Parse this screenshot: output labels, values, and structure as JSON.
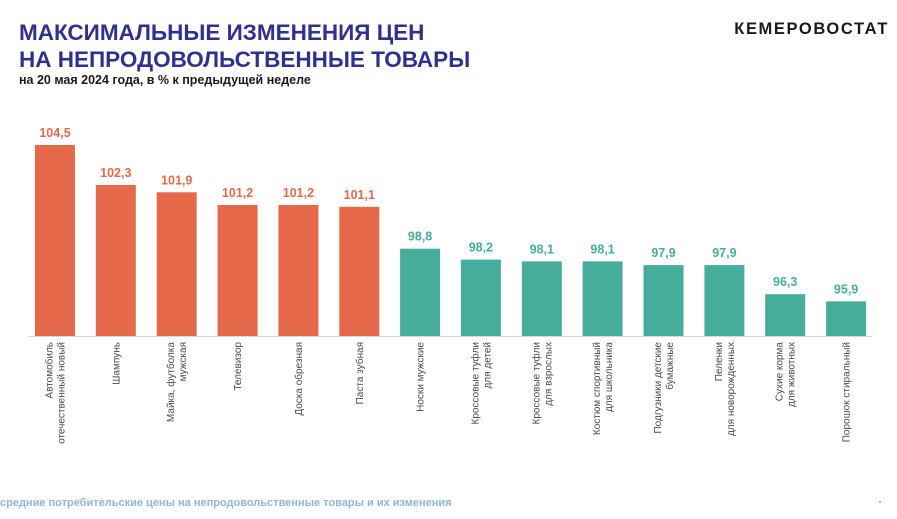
{
  "header": {
    "title_line1": "МАКСИМАЛЬНЫЕ ИЗМЕНЕНИЯ ЦЕН",
    "title_line2": "НА НЕПРОДОВОЛЬСТВЕННЫЕ ТОВАРЫ",
    "subtitle": "на 20 мая 2024 года, в % к предыдущей неделе",
    "brand": "КЕМЕРОВОСТАТ"
  },
  "footer": {
    "text": "средние потребительские цены на непродовольственные товары и их изменения"
  },
  "colors": {
    "increase": "#e5694a",
    "decrease": "#46ad9a",
    "title": "#2e3192"
  },
  "chart_data": {
    "type": "bar",
    "title": "",
    "xlabel": "",
    "ylabel": "",
    "grid": false,
    "ylim": [
      94,
      105
    ],
    "categories": [
      [
        "Автомобиль",
        "отечественный новый"
      ],
      [
        "Шампунь"
      ],
      [
        "Майка, футболка",
        "мужская"
      ],
      [
        "Телевизор"
      ],
      [
        "Доска обрезная"
      ],
      [
        "Паста зубная"
      ],
      [
        "Носки мужские"
      ],
      [
        "Кроссовые туфли",
        "для детей"
      ],
      [
        "Кроссовые туфли",
        "для взрослых"
      ],
      [
        "Костюм спортивный",
        "для школьника"
      ],
      [
        "Подгузники детские",
        "бумажные"
      ],
      [
        "Пеленки",
        "для новорожденных"
      ],
      [
        "Сухие корма",
        "для животных"
      ],
      [
        "Порошок стиральный"
      ]
    ],
    "values": [
      104.5,
      102.3,
      101.9,
      101.2,
      101.2,
      101.1,
      98.8,
      98.2,
      98.1,
      98.1,
      97.9,
      97.9,
      96.3,
      95.9
    ],
    "value_labels": [
      "104,5",
      "102,3",
      "101,9",
      "101,2",
      "101,2",
      "101,1",
      "98,8",
      "98,2",
      "98,1",
      "98,1",
      "97,9",
      "97,9",
      "96,3",
      "95,9"
    ]
  }
}
